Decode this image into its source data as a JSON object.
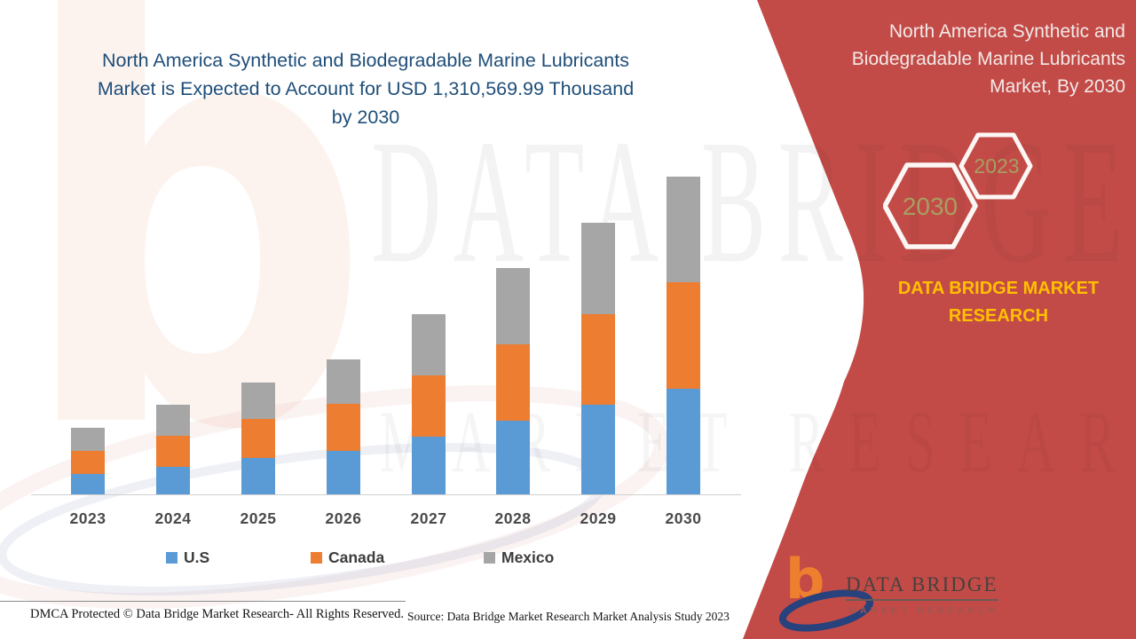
{
  "colors": {
    "panel_red": "#C34B47",
    "us_blue": "#5B9BD5",
    "canada_orange": "#ED7D31",
    "mexico_gray": "#A6A6A6",
    "title_navy": "#1F4E79",
    "brand_yellow": "#FFC000",
    "hex_year_olive": "#A79F62"
  },
  "header": {
    "title_lines": [
      "North America Synthetic and Biodegradable Marine Lubricants",
      "Market is Expected to Account for USD 1,310,569.99 Thousand",
      "by 2030"
    ]
  },
  "panel": {
    "title_lines": [
      "North America Synthetic and",
      "Biodegradable Marine Lubricants",
      "Market, By 2030"
    ],
    "hexagons": [
      {
        "label": "2030"
      },
      {
        "label": "2023"
      }
    ],
    "brand_lines": [
      "DATA BRIDGE MARKET",
      "RESEARCH"
    ]
  },
  "logo": {
    "glyph": "b",
    "name": "DATA BRIDGE",
    "tagline": "MARKET RESEARCH"
  },
  "watermark": {
    "glyph": "b",
    "big_text": "DATA BRIDGE",
    "tagline": "MARKET RESEARCH"
  },
  "footer": {
    "dmca": "DMCA Protected © Data Bridge Market Research- All Rights Reserved.",
    "source": "Source: Data Bridge Market Research Market Analysis Study 2023"
  },
  "chart_data": {
    "type": "bar",
    "stacked": true,
    "title": "North America Synthetic and Biodegradable Marine Lubricants Market is Expected to Account for USD 1,310,569.99 Thousand by 2030",
    "value_unit": "USD Thousand",
    "categories": [
      "2023",
      "2024",
      "2025",
      "2026",
      "2027",
      "2028",
      "2029",
      "2030"
    ],
    "series": [
      {
        "name": "U.S",
        "color": "#5B9BD5",
        "values": [
          87600,
          116800,
          153300,
          182500,
          241000,
          306700,
          372400,
          438100
        ]
      },
      {
        "name": "Canada",
        "color": "#ED7D31",
        "values": [
          94900,
          127800,
          160600,
          193500,
          251900,
          314000,
          372400,
          438100
        ]
      },
      {
        "name": "Mexico",
        "color": "#A6A6A6",
        "values": [
          94900,
          127800,
          149700,
          182500,
          251900,
          314000,
          376100,
          434400
        ]
      }
    ],
    "totals_estimated": [
      277400,
      372400,
      463600,
      558500,
      744800,
      934700,
      1120900,
      1310570
    ],
    "annotation": "USD 1,310,569.99 Thousand by 2030",
    "ylim": [
      0,
      1400000
    ],
    "grid": false,
    "y_axis_visible": false,
    "legend_position": "bottom"
  }
}
